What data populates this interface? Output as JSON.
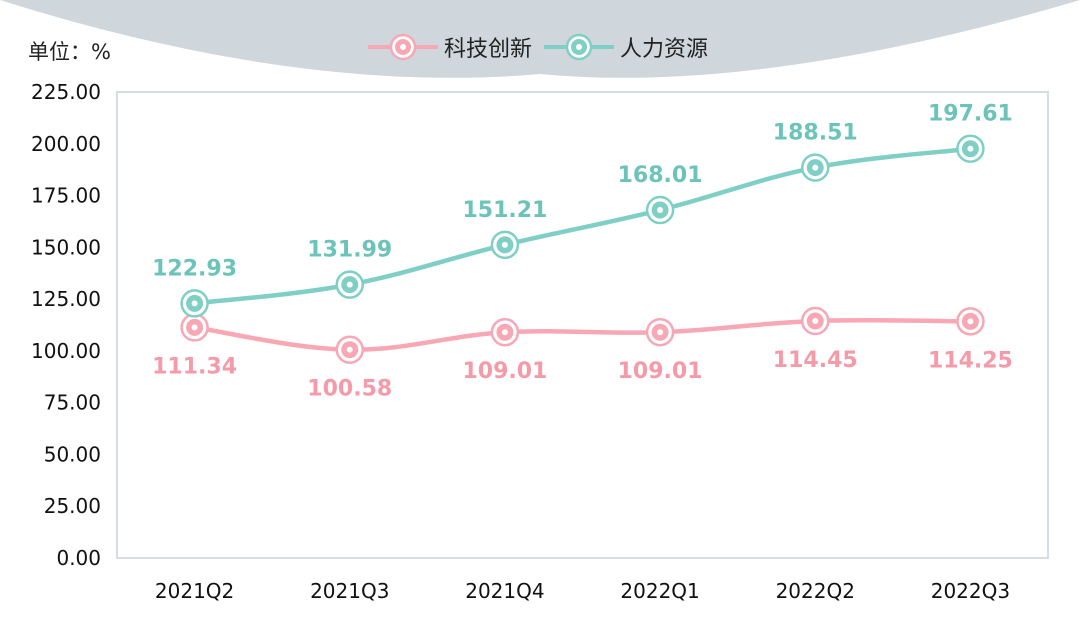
{
  "unit_label": "单位：%",
  "colors": {
    "series_1": "#f8a7b4",
    "series_2": "#7fcfc6",
    "series_1_label": "#f59aa8",
    "series_2_label": "#6cc3b9",
    "header_arc": "#cfd6dc",
    "plot_border": "#d6dde2"
  },
  "chart_data": {
    "type": "line",
    "title": "",
    "xlabel": "",
    "ylabel": "单位：%",
    "categories": [
      "2021Q2",
      "2021Q3",
      "2021Q4",
      "2022Q1",
      "2022Q2",
      "2022Q3"
    ],
    "ylim": [
      0,
      225
    ],
    "yticks": [
      "0.00",
      "25.00",
      "50.00",
      "75.00",
      "100.00",
      "125.00",
      "150.00",
      "175.00",
      "200.00",
      "225.00"
    ],
    "grid": false,
    "legend_position": "top-center",
    "series": [
      {
        "name": "科技创新",
        "values": [
          111.34,
          100.58,
          109.01,
          109.01,
          114.45,
          114.25
        ],
        "labels": [
          "111.34",
          "100.58",
          "109.01",
          "109.01",
          "114.45",
          "114.25"
        ],
        "label_position": "below"
      },
      {
        "name": "人力资源",
        "values": [
          122.93,
          131.99,
          151.21,
          168.01,
          188.51,
          197.61
        ],
        "labels": [
          "122.93",
          "131.99",
          "151.21",
          "168.01",
          "188.51",
          "197.61"
        ],
        "label_position": "above"
      }
    ]
  }
}
